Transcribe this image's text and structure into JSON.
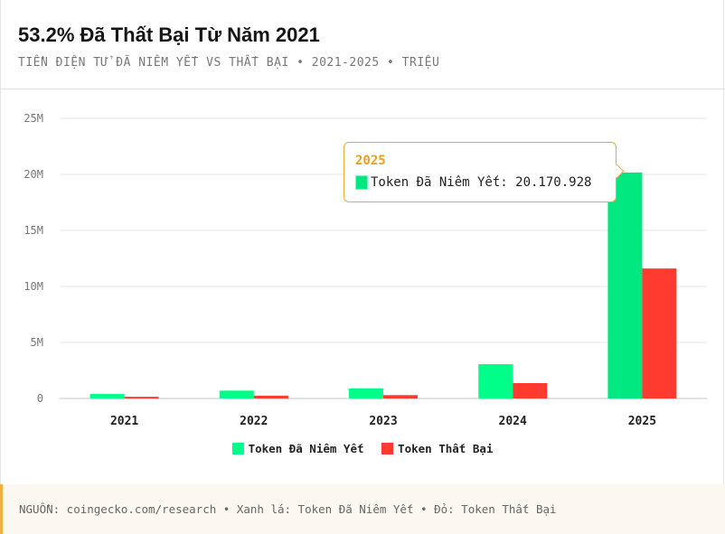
{
  "header": {
    "title": "53.2% Đã Thất Bại Từ Năm 2021",
    "subtitle": "TIỀN ĐIỆN TỬ ĐÃ NIÊM YẾT VS THẤT BẠI • 2021-2025 • TRIỆU"
  },
  "chart_data": {
    "type": "bar",
    "categories": [
      "2021",
      "2022",
      "2023",
      "2024",
      "2025"
    ],
    "series": [
      {
        "name": "Token Đã Niêm Yết",
        "color": "#00ff88",
        "values": [
          400000,
          700000,
          900000,
          3060000,
          20170928
        ]
      },
      {
        "name": "Token Thất Bại",
        "color": "#ff3b30",
        "values": [
          150000,
          250000,
          300000,
          1370000,
          11600000
        ]
      }
    ],
    "ylim": [
      0,
      25000000
    ],
    "yticks": [
      0,
      5000000,
      10000000,
      15000000,
      20000000,
      25000000
    ],
    "ytick_labels": [
      "0",
      "5M",
      "10M",
      "15M",
      "20M",
      "25M"
    ],
    "grid": true,
    "legend": "bottom"
  },
  "tooltip": {
    "year": "2025",
    "label": "Token Đã Niêm Yết: 20.170.928",
    "color": "#00e87f"
  },
  "footer": {
    "text": "NGUỒN: coingecko.com/research • Xanh lá: Token Đã Niêm Yết • Đỏ: Token Thất Bại"
  }
}
